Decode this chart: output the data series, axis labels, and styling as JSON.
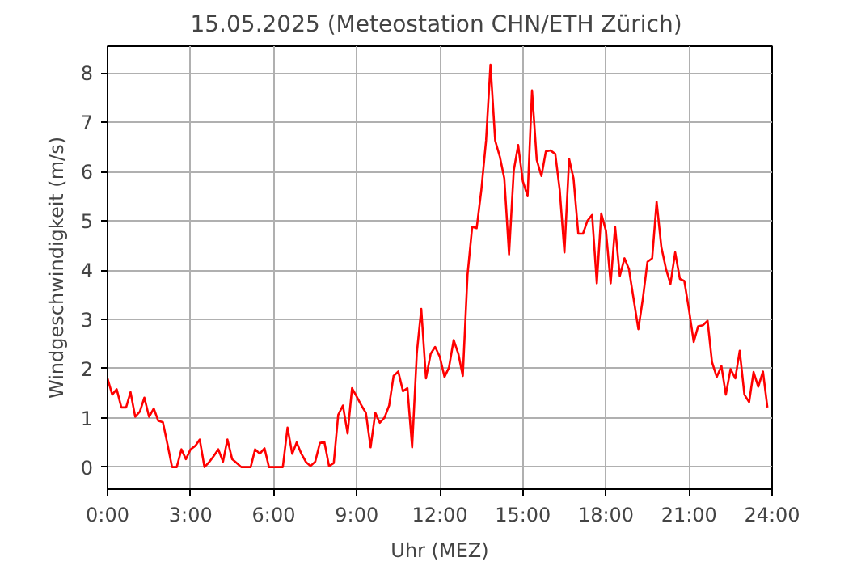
{
  "chart_data": {
    "type": "line",
    "title": "15.05.2025  (Meteostation CHN/ETH Zürich)",
    "xlabel": "Uhr (MEZ)",
    "ylabel": "Windgeschwindigkeit (m/s)",
    "x": [
      0,
      0.17,
      0.33,
      0.5,
      0.67,
      0.83,
      1,
      1.17,
      1.33,
      1.5,
      1.67,
      1.83,
      2,
      2.17,
      2.33,
      2.5,
      2.67,
      2.83,
      3,
      3.17,
      3.33,
      3.5,
      3.67,
      3.83,
      4,
      4.17,
      4.33,
      4.5,
      4.67,
      4.83,
      5,
      5.17,
      5.33,
      5.5,
      5.67,
      5.83,
      6,
      6.17,
      6.33,
      6.5,
      6.67,
      6.83,
      7,
      7.17,
      7.33,
      7.5,
      7.67,
      7.83,
      8,
      8.17,
      8.33,
      8.5,
      8.67,
      8.83,
      9,
      9.17,
      9.33,
      9.5,
      9.67,
      9.83,
      10,
      10.17,
      10.33,
      10.5,
      10.67,
      10.83,
      11,
      11.17,
      11.33,
      11.5,
      11.67,
      11.83,
      12,
      12.17,
      12.33,
      12.5,
      12.67,
      12.83,
      13,
      13.17,
      13.33,
      13.5,
      13.67,
      13.83,
      14,
      14.17,
      14.33,
      14.5,
      14.67,
      14.83,
      15,
      15.17,
      15.33,
      15.5,
      15.67,
      15.83,
      16,
      16.17,
      16.33,
      16.5,
      16.67,
      16.83,
      17,
      17.17,
      17.33,
      17.5,
      17.67,
      17.83,
      18,
      18.17,
      18.33,
      18.5,
      18.67,
      18.83,
      19,
      19.17,
      19.33,
      19.5,
      19.67,
      19.83,
      20,
      20.17,
      20.33,
      20.5,
      20.67,
      20.83,
      21,
      21.17,
      21.33,
      21.5,
      21.67,
      21.83,
      22,
      22.17,
      22.33,
      22.5,
      22.67,
      22.83,
      23,
      23.17,
      23.33,
      23.5,
      23.67,
      23.83
    ],
    "series": [
      {
        "color": "#ff0000",
        "values": [
          1.8,
          1.47,
          1.58,
          1.21,
          1.21,
          1.52,
          1.02,
          1.13,
          1.41,
          1.02,
          1.19,
          0.94,
          0.91,
          0.45,
          0,
          0,
          0.36,
          0.16,
          0.36,
          0.43,
          0.56,
          0,
          0.1,
          0.22,
          0.36,
          0.11,
          0.56,
          0.16,
          0.08,
          0,
          0,
          0,
          0.36,
          0.27,
          0.38,
          0,
          0,
          0,
          0,
          0.8,
          0.27,
          0.5,
          0.27,
          0.1,
          0.02,
          0.11,
          0.49,
          0.51,
          0.02,
          0.08,
          1.06,
          1.25,
          0.68,
          1.6,
          1.43,
          1.25,
          1.1,
          0.4,
          1.1,
          0.9,
          1.0,
          1.25,
          1.85,
          1.94,
          1.54,
          1.6,
          0.4,
          2.32,
          3.21,
          1.8,
          2.3,
          2.44,
          2.24,
          1.83,
          2.02,
          2.58,
          2.3,
          1.85,
          3.9,
          4.88,
          4.85,
          5.63,
          6.63,
          8.17,
          6.63,
          6.3,
          5.86,
          4.32,
          6.02,
          6.54,
          5.8,
          5.5,
          7.65,
          6.24,
          5.91,
          6.41,
          6.43,
          6.36,
          5.63,
          4.36,
          6.26,
          5.86,
          4.74,
          4.74,
          5.0,
          5.12,
          3.73,
          5.15,
          4.8,
          3.73,
          4.88,
          3.88,
          4.24,
          4.02,
          3.41,
          2.8,
          3.41,
          4.17,
          4.24,
          5.39,
          4.47,
          4.02,
          3.72,
          4.36,
          3.82,
          3.78,
          3.19,
          2.54,
          2.86,
          2.88,
          2.97,
          2.13,
          1.83,
          2.05,
          1.47,
          1.99,
          1.8,
          2.36,
          1.47,
          1.32,
          1.93,
          1.63,
          1.94,
          1.21
        ]
      }
    ],
    "xlim": [
      0,
      24
    ],
    "xticks": [
      {
        "value": 0,
        "label": "0:00"
      },
      {
        "value": 3,
        "label": "3:00"
      },
      {
        "value": 6,
        "label": "6:00"
      },
      {
        "value": 9,
        "label": "9:00"
      },
      {
        "value": 12,
        "label": "12:00"
      },
      {
        "value": 15,
        "label": "15:00"
      },
      {
        "value": 18,
        "label": "18:00"
      },
      {
        "value": 21,
        "label": "21:00"
      },
      {
        "value": 24,
        "label": "24:00"
      }
    ],
    "ylim": [
      -0.45,
      8.55
    ],
    "yticks": [
      0,
      1,
      2,
      3,
      4,
      5,
      6,
      7,
      8
    ],
    "grid": true,
    "marker": "none",
    "line_style": "solid"
  }
}
